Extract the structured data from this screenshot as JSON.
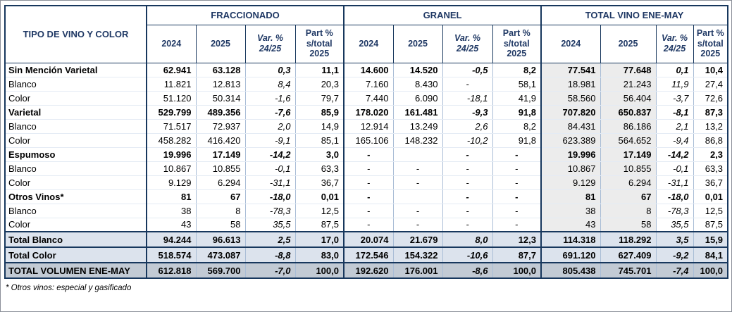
{
  "colors": {
    "navy": "#17375d",
    "header-text": "#1f3864",
    "grid-v": "#a9bdd6",
    "grid-h": "#e4ebf4",
    "totals-bg": "#dce3ed",
    "grandtotal-bg": "#c2cad4",
    "totalgroup-bg": "#ececec"
  },
  "table": {
    "row_header": "TIPO DE VINO Y COLOR",
    "groups": [
      {
        "key": "fraccionado",
        "label": "FRACCIONADO"
      },
      {
        "key": "granel",
        "label": "GRANEL"
      },
      {
        "key": "total-vino",
        "label": "TOTAL VINO ENE-MAY"
      }
    ],
    "sub_columns": [
      {
        "key": "2024",
        "lines": [
          "2024"
        ],
        "italic": false
      },
      {
        "key": "2025",
        "lines": [
          "2025"
        ],
        "italic": false
      },
      {
        "key": "var",
        "lines": [
          "Var. %",
          "24/25"
        ],
        "italic": true
      },
      {
        "key": "part",
        "lines": [
          "Part %",
          "s/total",
          "2025"
        ],
        "italic": false
      }
    ],
    "rows": [
      {
        "label": "Sin Mención Varietal",
        "type": "section",
        "cells": [
          "62.941",
          "63.128",
          "0,3",
          "11,1",
          "14.600",
          "14.520",
          "-0,5",
          "8,2",
          "77.541",
          "77.648",
          "0,1",
          "10,4"
        ]
      },
      {
        "label": "Blanco",
        "type": "sub",
        "cells": [
          "11.821",
          "12.813",
          "8,4",
          "20,3",
          "7.160",
          "8.430",
          "-",
          "58,1",
          "18.981",
          "21.243",
          "11,9",
          "27,4"
        ]
      },
      {
        "label": "Color",
        "type": "sub",
        "cells": [
          "51.120",
          "50.314",
          "-1,6",
          "79,7",
          "7.440",
          "6.090",
          "-18,1",
          "41,9",
          "58.560",
          "56.404",
          "-3,7",
          "72,6"
        ]
      },
      {
        "label": "Varietal",
        "type": "section",
        "cells": [
          "529.799",
          "489.356",
          "-7,6",
          "85,9",
          "178.020",
          "161.481",
          "-9,3",
          "91,8",
          "707.820",
          "650.837",
          "-8,1",
          "87,3"
        ]
      },
      {
        "label": "Blanco",
        "type": "sub",
        "cells": [
          "71.517",
          "72.937",
          "2,0",
          "14,9",
          "12.914",
          "13.249",
          "2,6",
          "8,2",
          "84.431",
          "86.186",
          "2,1",
          "13,2"
        ]
      },
      {
        "label": "Color",
        "type": "sub",
        "cells": [
          "458.282",
          "416.420",
          "-9,1",
          "85,1",
          "165.106",
          "148.232",
          "-10,2",
          "91,8",
          "623.389",
          "564.652",
          "-9,4",
          "86,8"
        ]
      },
      {
        "label": "Espumoso",
        "type": "section",
        "cells": [
          "19.996",
          "17.149",
          "-14,2",
          "3,0",
          "-",
          "",
          "-",
          "-",
          "19.996",
          "17.149",
          "-14,2",
          "2,3"
        ]
      },
      {
        "label": "Blanco",
        "type": "sub",
        "cells": [
          "10.867",
          "10.855",
          "-0,1",
          "63,3",
          "-",
          "-",
          "-",
          "-",
          "10.867",
          "10.855",
          "-0,1",
          "63,3"
        ]
      },
      {
        "label": "Color",
        "type": "sub",
        "cells": [
          "9.129",
          "6.294",
          "-31,1",
          "36,7",
          "-",
          "-",
          "-",
          "-",
          "9.129",
          "6.294",
          "-31,1",
          "36,7"
        ]
      },
      {
        "label": "Otros Vinos*",
        "type": "section",
        "cells": [
          "81",
          "67",
          "-18,0",
          "0,01",
          "-",
          "",
          "-",
          "-",
          "81",
          "67",
          "-18,0",
          "0,01"
        ]
      },
      {
        "label": "Blanco",
        "type": "sub",
        "cells": [
          "38",
          "8",
          "-78,3",
          "12,5",
          "-",
          "-",
          "-",
          "-",
          "38",
          "8",
          "-78,3",
          "12,5"
        ]
      },
      {
        "label": "Color",
        "type": "sub",
        "cells": [
          "43",
          "58",
          "35,5",
          "87,5",
          "-",
          "-",
          "-",
          "-",
          "43",
          "58",
          "35,5",
          "87,5"
        ]
      },
      {
        "label": "Total Blanco",
        "type": "total",
        "cells": [
          "94.244",
          "96.613",
          "2,5",
          "17,0",
          "20.074",
          "21.679",
          "8,0",
          "12,3",
          "114.318",
          "118.292",
          "3,5",
          "15,9"
        ]
      },
      {
        "label": "Total Color",
        "type": "total",
        "cells": [
          "518.574",
          "473.087",
          "-8,8",
          "83,0",
          "172.546",
          "154.322",
          "-10,6",
          "87,7",
          "691.120",
          "627.409",
          "-9,2",
          "84,1"
        ]
      },
      {
        "label": "TOTAL VOLUMEN ENE-MAY",
        "type": "grandtotal",
        "cells": [
          "612.818",
          "569.700",
          "-7,0",
          "100,0",
          "192.620",
          "176.001",
          "-8,6",
          "100,0",
          "805.438",
          "745.701",
          "-7,4",
          "100,0"
        ]
      }
    ],
    "footnote": "* Otros vinos: especial y gasificado"
  }
}
